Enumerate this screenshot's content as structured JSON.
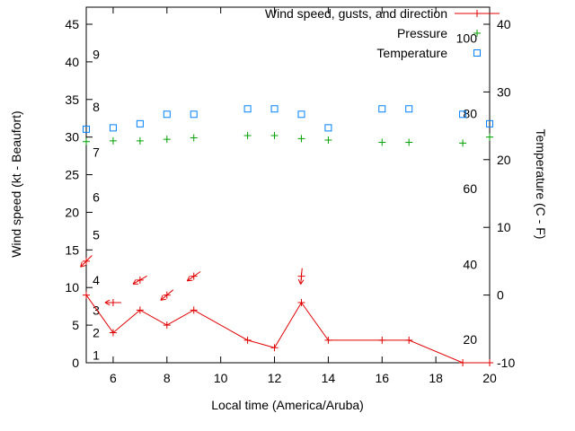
{
  "page": {
    "background": "#ffffff"
  },
  "chart_data": {
    "type": "line",
    "title": "",
    "xlabel": "Local time (America/Aruba)",
    "ylabel_left": "Wind speed (kt - Beaufort)",
    "ylabel_right": "Temperature (C - F)",
    "x_range": [
      5,
      20
    ],
    "y_left_range_kt": [
      0,
      47.3
    ],
    "y_right_range_c": [
      -10,
      42.5
    ],
    "x_ticks": [
      6,
      8,
      10,
      12,
      14,
      16,
      18,
      20
    ],
    "y_left_ticks_kt": [
      0,
      5,
      10,
      15,
      20,
      25,
      30,
      35,
      40,
      45
    ],
    "y_right_ticks_c": [
      -10,
      0,
      10,
      20,
      30,
      40
    ],
    "beaufort_scale": [
      {
        "label": "1",
        "kt": 1
      },
      {
        "label": "2",
        "kt": 4
      },
      {
        "label": "3",
        "kt": 7
      },
      {
        "label": "4",
        "kt": 11
      },
      {
        "label": "5",
        "kt": 17
      },
      {
        "label": "6",
        "kt": 22
      },
      {
        "label": "7",
        "kt": 28
      },
      {
        "label": "8",
        "kt": 34
      },
      {
        "label": "9",
        "kt": 41
      }
    ],
    "fahrenheit_scale": [
      {
        "label": "20",
        "c": -6.7
      },
      {
        "label": "40",
        "c": 4.4
      },
      {
        "label": "60",
        "c": 15.6
      },
      {
        "label": "80",
        "c": 26.7
      },
      {
        "label": "100",
        "c": 37.8
      }
    ],
    "hours": [
      5,
      6,
      7,
      8,
      9,
      11,
      12,
      13,
      14,
      16,
      17,
      19,
      20
    ],
    "series": [
      {
        "name": "Wind speed, gusts, and direction",
        "color": "#e00000",
        "marker": "plus",
        "line": true,
        "axis": "left",
        "values": [
          9,
          4,
          7,
          5,
          7,
          3,
          2,
          8,
          3,
          3,
          3,
          0,
          0
        ]
      },
      {
        "name": "Pressure",
        "color": "#00a000",
        "marker": "plus",
        "line": false,
        "axis": "left",
        "values": [
          29.4,
          29.5,
          29.5,
          29.7,
          29.9,
          30.2,
          30.2,
          29.8,
          29.6,
          29.3,
          29.3,
          29.2,
          30.0
        ]
      },
      {
        "name": "Temperature",
        "color": "#0080ff",
        "marker": "square",
        "line": false,
        "axis": "right",
        "values": [
          24.5,
          24.7,
          25.3,
          26.7,
          26.7,
          27.5,
          27.5,
          26.7,
          24.7,
          27.5,
          27.5,
          26.7,
          25.3
        ]
      }
    ],
    "wind_direction_arrows": [
      {
        "hour": 5,
        "kt": 13.5,
        "angle_deg": 135
      },
      {
        "hour": 6,
        "kt": 8,
        "angle_deg": 180
      },
      {
        "hour": 7,
        "kt": 11,
        "angle_deg": 150
      },
      {
        "hour": 8,
        "kt": 9,
        "angle_deg": 140
      },
      {
        "hour": 9,
        "kt": 11.5,
        "angle_deg": 145
      },
      {
        "hour": 13,
        "kt": 11.5,
        "angle_deg": 95
      }
    ]
  }
}
